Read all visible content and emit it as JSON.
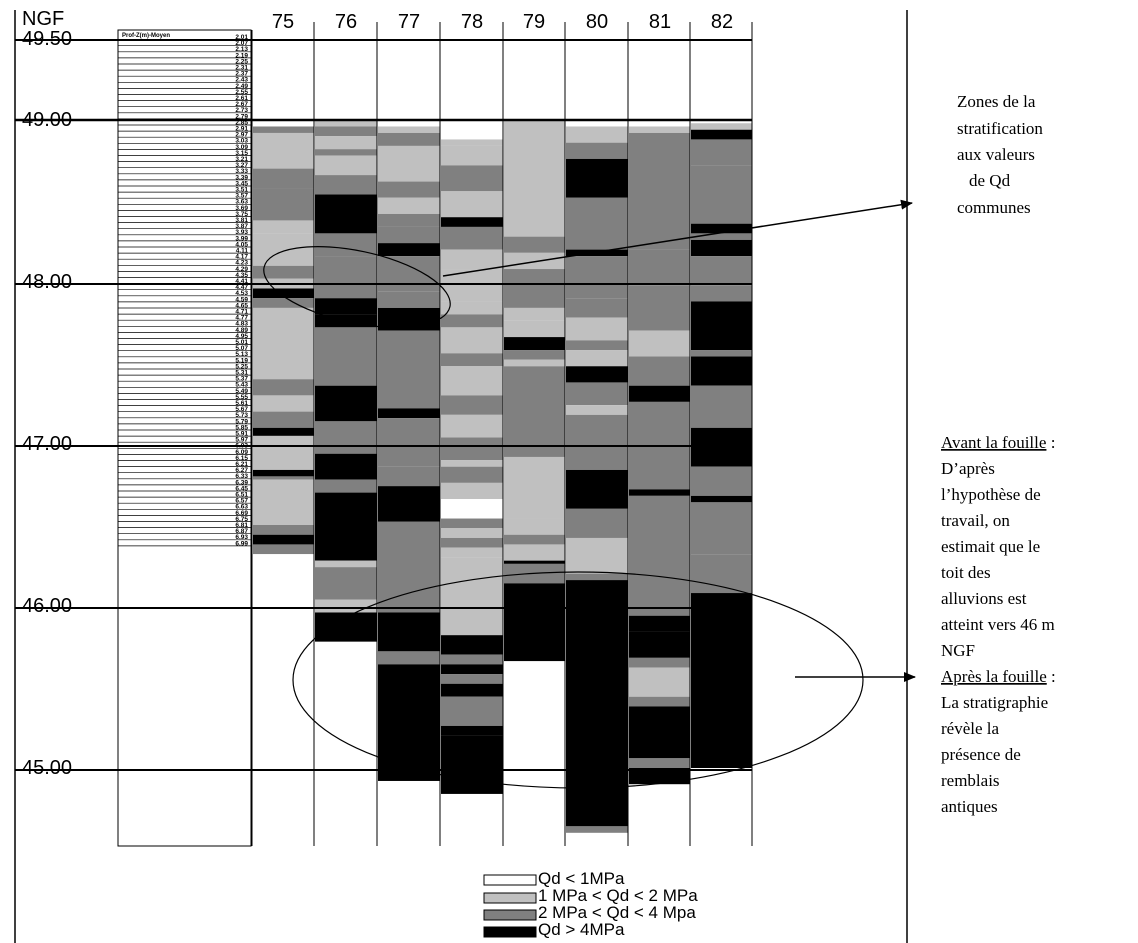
{
  "axis": {
    "unit_label": "NGF",
    "elevations": [
      "49.50",
      "49.00",
      "48.00",
      "47.00",
      "46.00",
      "45.00"
    ]
  },
  "depth_header": "Prof-Z(m)-Moyen",
  "depths": [
    "2.01",
    "2.07",
    "2.13",
    "2.19",
    "2.25",
    "2.31",
    "2.37",
    "2.43",
    "2.49",
    "2.55",
    "2.61",
    "2.67",
    "2.73",
    "2.79",
    "2.85",
    "2.91",
    "2.97",
    "3.03",
    "3.09",
    "3.15",
    "3.21",
    "3.27",
    "3.33",
    "3.39",
    "3.45",
    "3.51",
    "3.57",
    "3.63",
    "3.69",
    "3.75",
    "3.81",
    "3.87",
    "3.93",
    "3.99",
    "4.05",
    "4.11",
    "4.17",
    "4.23",
    "4.29",
    "4.35",
    "4.41",
    "4.47",
    "4.53",
    "4.59",
    "4.65",
    "4.71",
    "4.77",
    "4.83",
    "4.89",
    "4.95",
    "5.01",
    "5.07",
    "5.13",
    "5.19",
    "5.25",
    "5.31",
    "5.37",
    "5.43",
    "5.49",
    "5.55",
    "5.61",
    "5.67",
    "5.73",
    "5.79",
    "5.85",
    "5.91",
    "5.97",
    "6.03",
    "6.09",
    "6.15",
    "6.21",
    "6.27",
    "6.33",
    "6.39",
    "6.45",
    "6.51",
    "6.57",
    "6.63",
    "6.69",
    "6.75",
    "6.81",
    "6.87",
    "6.93",
    "6.99"
  ],
  "columns": [
    "75",
    "76",
    "77",
    "78",
    "79",
    "80",
    "81",
    "82"
  ],
  "colors": {
    "q0": "#ffffff",
    "q1": "#c0c0c0",
    "q2": "#808080",
    "q3": "#000000"
  },
  "legend": [
    {
      "key": "q0",
      "label": "Qd < 1MPa"
    },
    {
      "key": "q1",
      "label": "1 MPa < Qd < 2 MPa"
    },
    {
      "key": "q2",
      "label": "2 MPa < Qd < 4 Mpa"
    },
    {
      "key": "q3",
      "label": "Qd > 4MPa"
    }
  ],
  "annotation_top": [
    "Zones de la",
    "stratification",
    "aux valeurs",
    "de Qd",
    "communes"
  ],
  "annotation_right": {
    "before_title": "Avant la fouille",
    "before_colon": " :",
    "before_lines": [
      "D’après",
      "l’hypothèse de",
      "travail, on",
      "estimait que le",
      "toit des",
      "alluvions est",
      "atteint vers 46 m",
      "NGF"
    ],
    "after_title": "Après la fouille",
    "after_colon": " :",
    "after_lines": [
      "La stratigraphie",
      "révèle la",
      "présence  de",
      "remblais",
      "antiques"
    ]
  },
  "profiles": {
    "75": [
      [
        48.96,
        48.92,
        "q2"
      ],
      [
        48.92,
        48.7,
        "q1"
      ],
      [
        48.7,
        48.58,
        "q2"
      ],
      [
        48.58,
        48.38,
        "q2"
      ],
      [
        48.38,
        48.3,
        "q1"
      ],
      [
        48.3,
        48.1,
        "q1"
      ],
      [
        48.1,
        48.02,
        "q2"
      ],
      [
        48.02,
        47.96,
        "q1"
      ],
      [
        47.96,
        47.9,
        "q3"
      ],
      [
        47.9,
        47.84,
        "q2"
      ],
      [
        47.84,
        47.4,
        "q1"
      ],
      [
        47.4,
        47.3,
        "q2"
      ],
      [
        47.3,
        47.2,
        "q1"
      ],
      [
        47.2,
        47.1,
        "q2"
      ],
      [
        47.1,
        47.05,
        "q3"
      ],
      [
        47.05,
        46.84,
        "q1"
      ],
      [
        46.84,
        46.8,
        "q3"
      ],
      [
        46.8,
        46.78,
        "q2"
      ],
      [
        46.78,
        46.5,
        "q1"
      ],
      [
        46.5,
        46.44,
        "q2"
      ],
      [
        46.44,
        46.38,
        "q3"
      ],
      [
        46.38,
        46.32,
        "q2"
      ],
      [
        46.32,
        46.28,
        "q0"
      ]
    ],
    "76": [
      [
        49.0,
        48.96,
        "q1"
      ],
      [
        48.96,
        48.9,
        "q2"
      ],
      [
        48.9,
        48.82,
        "q1"
      ],
      [
        48.82,
        48.78,
        "q2"
      ],
      [
        48.78,
        48.66,
        "q1"
      ],
      [
        48.66,
        48.54,
        "q2"
      ],
      [
        48.54,
        48.3,
        "q3"
      ],
      [
        48.3,
        48.16,
        "q2"
      ],
      [
        48.16,
        47.9,
        "q2"
      ],
      [
        47.9,
        47.8,
        "q3"
      ],
      [
        47.8,
        47.72,
        "q3"
      ],
      [
        47.72,
        47.36,
        "q2"
      ],
      [
        47.36,
        47.14,
        "q3"
      ],
      [
        47.14,
        46.94,
        "q2"
      ],
      [
        46.94,
        46.78,
        "q3"
      ],
      [
        46.78,
        46.7,
        "q2"
      ],
      [
        46.7,
        46.28,
        "q3"
      ],
      [
        46.28,
        46.24,
        "q1"
      ],
      [
        46.24,
        46.04,
        "q2"
      ],
      [
        46.04,
        45.96,
        "q1"
      ],
      [
        45.96,
        45.78,
        "q3"
      ]
    ],
    "77": [
      [
        48.96,
        48.92,
        "q1"
      ],
      [
        48.92,
        48.84,
        "q2"
      ],
      [
        48.84,
        48.62,
        "q1"
      ],
      [
        48.62,
        48.52,
        "q2"
      ],
      [
        48.52,
        48.42,
        "q1"
      ],
      [
        48.42,
        48.34,
        "q2"
      ],
      [
        48.34,
        48.24,
        "q2"
      ],
      [
        48.24,
        48.16,
        "q3"
      ],
      [
        48.16,
        47.94,
        "q2"
      ],
      [
        47.94,
        47.84,
        "q2"
      ],
      [
        47.84,
        47.7,
        "q3"
      ],
      [
        47.7,
        47.22,
        "q2"
      ],
      [
        47.22,
        47.16,
        "q3"
      ],
      [
        47.16,
        46.86,
        "q2"
      ],
      [
        46.86,
        46.74,
        "q2"
      ],
      [
        46.74,
        46.52,
        "q3"
      ],
      [
        46.52,
        45.96,
        "q2"
      ],
      [
        45.96,
        45.72,
        "q3"
      ],
      [
        45.72,
        45.64,
        "q2"
      ],
      [
        45.64,
        45.0,
        "q3"
      ],
      [
        45.0,
        44.92,
        "q3"
      ]
    ],
    "78": [
      [
        48.88,
        48.84,
        "q1"
      ],
      [
        48.84,
        48.72,
        "q1"
      ],
      [
        48.72,
        48.56,
        "q2"
      ],
      [
        48.56,
        48.4,
        "q1"
      ],
      [
        48.4,
        48.34,
        "q3"
      ],
      [
        48.34,
        48.2,
        "q2"
      ],
      [
        48.2,
        48.08,
        "q1"
      ],
      [
        48.08,
        47.88,
        "q1"
      ],
      [
        47.88,
        47.8,
        "q1"
      ],
      [
        47.8,
        47.72,
        "q2"
      ],
      [
        47.72,
        47.56,
        "q1"
      ],
      [
        47.56,
        47.48,
        "q2"
      ],
      [
        47.48,
        47.3,
        "q1"
      ],
      [
        47.3,
        47.18,
        "q2"
      ],
      [
        47.18,
        47.04,
        "q1"
      ],
      [
        47.04,
        46.9,
        "q2"
      ],
      [
        46.9,
        46.86,
        "q1"
      ],
      [
        46.86,
        46.76,
        "q2"
      ],
      [
        46.76,
        46.66,
        "q1"
      ],
      [
        46.66,
        46.54,
        "q0"
      ],
      [
        46.54,
        46.48,
        "q2"
      ],
      [
        46.48,
        46.42,
        "q1"
      ],
      [
        46.42,
        46.36,
        "q2"
      ],
      [
        46.36,
        46.3,
        "q1"
      ],
      [
        46.3,
        46.0,
        "q1"
      ],
      [
        46.0,
        45.82,
        "q1"
      ],
      [
        45.82,
        45.7,
        "q3"
      ],
      [
        45.7,
        45.64,
        "q2"
      ],
      [
        45.64,
        45.58,
        "q3"
      ],
      [
        45.58,
        45.52,
        "q2"
      ],
      [
        45.52,
        45.44,
        "q3"
      ],
      [
        45.44,
        45.26,
        "q2"
      ],
      [
        45.26,
        45.2,
        "q3"
      ],
      [
        45.2,
        44.84,
        "q3"
      ]
    ],
    "79": [
      [
        49.0,
        48.28,
        "q1"
      ],
      [
        48.28,
        48.18,
        "q2"
      ],
      [
        48.18,
        48.08,
        "q1"
      ],
      [
        48.08,
        47.84,
        "q2"
      ],
      [
        47.84,
        47.76,
        "q1"
      ],
      [
        47.76,
        47.66,
        "q1"
      ],
      [
        47.66,
        47.58,
        "q3"
      ],
      [
        47.58,
        47.52,
        "q2"
      ],
      [
        47.52,
        47.48,
        "q1"
      ],
      [
        47.48,
        46.92,
        "q2"
      ],
      [
        46.92,
        46.54,
        "q1"
      ],
      [
        46.54,
        46.44,
        "q1"
      ],
      [
        46.44,
        46.38,
        "q2"
      ],
      [
        46.38,
        46.28,
        "q1"
      ],
      [
        46.28,
        46.26,
        "q3"
      ],
      [
        46.26,
        46.14,
        "q2"
      ],
      [
        46.14,
        45.66,
        "q3"
      ]
    ],
    "80": [
      [
        48.96,
        48.86,
        "q1"
      ],
      [
        48.86,
        48.76,
        "q2"
      ],
      [
        48.76,
        48.52,
        "q3"
      ],
      [
        48.52,
        48.2,
        "q2"
      ],
      [
        48.2,
        48.16,
        "q3"
      ],
      [
        48.16,
        47.9,
        "q2"
      ],
      [
        47.9,
        47.78,
        "q2"
      ],
      [
        47.78,
        47.64,
        "q1"
      ],
      [
        47.64,
        47.58,
        "q2"
      ],
      [
        47.58,
        47.48,
        "q1"
      ],
      [
        47.48,
        47.38,
        "q3"
      ],
      [
        47.38,
        47.24,
        "q2"
      ],
      [
        47.24,
        47.18,
        "q1"
      ],
      [
        47.18,
        47.0,
        "q2"
      ],
      [
        47.0,
        46.84,
        "q2"
      ],
      [
        46.84,
        46.6,
        "q3"
      ],
      [
        46.6,
        46.42,
        "q2"
      ],
      [
        46.42,
        46.2,
        "q1"
      ],
      [
        46.2,
        46.16,
        "q2"
      ],
      [
        46.16,
        44.64,
        "q3"
      ],
      [
        44.64,
        44.6,
        "q2"
      ]
    ],
    "81": [
      [
        48.96,
        48.92,
        "q1"
      ],
      [
        48.92,
        48.2,
        "q2"
      ],
      [
        48.2,
        47.98,
        "q2"
      ],
      [
        47.98,
        47.7,
        "q2"
      ],
      [
        47.7,
        47.54,
        "q1"
      ],
      [
        47.54,
        47.36,
        "q2"
      ],
      [
        47.36,
        47.26,
        "q3"
      ],
      [
        47.26,
        47.0,
        "q2"
      ],
      [
        47.0,
        46.72,
        "q2"
      ],
      [
        46.72,
        46.68,
        "q3"
      ],
      [
        46.68,
        46.0,
        "q2"
      ],
      [
        46.0,
        45.94,
        "q2"
      ],
      [
        45.94,
        45.84,
        "q3"
      ],
      [
        45.84,
        45.68,
        "q3"
      ],
      [
        45.68,
        45.62,
        "q2"
      ],
      [
        45.62,
        45.44,
        "q1"
      ],
      [
        45.44,
        45.38,
        "q2"
      ],
      [
        45.38,
        45.06,
        "q3"
      ],
      [
        45.06,
        45.0,
        "q2"
      ],
      [
        45.0,
        44.9,
        "q3"
      ]
    ],
    "82": [
      [
        48.98,
        48.94,
        "q1"
      ],
      [
        48.94,
        48.88,
        "q3"
      ],
      [
        48.88,
        48.72,
        "q2"
      ],
      [
        48.72,
        48.36,
        "q2"
      ],
      [
        48.36,
        48.3,
        "q3"
      ],
      [
        48.3,
        48.26,
        "q2"
      ],
      [
        48.26,
        48.16,
        "q3"
      ],
      [
        48.16,
        47.98,
        "q2"
      ],
      [
        47.98,
        47.88,
        "q2"
      ],
      [
        47.88,
        47.58,
        "q3"
      ],
      [
        47.58,
        47.54,
        "q2"
      ],
      [
        47.54,
        47.36,
        "q3"
      ],
      [
        47.36,
        47.1,
        "q2"
      ],
      [
        47.1,
        46.86,
        "q3"
      ],
      [
        46.86,
        46.68,
        "q2"
      ],
      [
        46.68,
        46.64,
        "q3"
      ],
      [
        46.64,
        46.32,
        "q2"
      ],
      [
        46.32,
        46.08,
        "q2"
      ],
      [
        46.08,
        45.0,
        "q3"
      ]
    ]
  }
}
